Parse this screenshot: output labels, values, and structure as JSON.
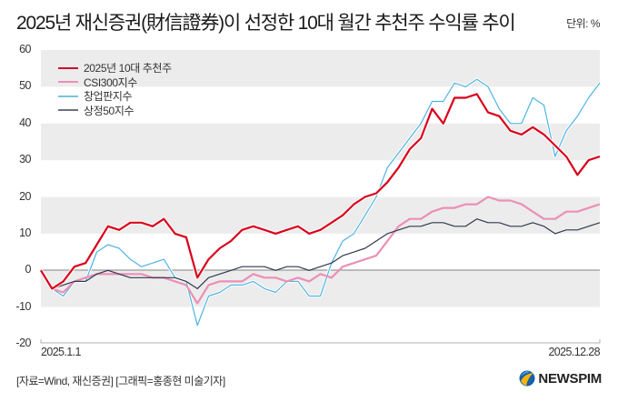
{
  "header": {
    "title": "2025년 재신증권(財信證券)이 선정한 10대 월간 추천주 수익률 추이",
    "unit": "단위: %"
  },
  "footer": {
    "source": "[자료=Wind, 재신증권] [그래픽=홍종현 미술기자]",
    "logo_text": "NEWSPIM",
    "logo_icon": "newspim-globe-icon"
  },
  "colors": {
    "red": "#d9001b",
    "pink": "#ec8fb6",
    "cyan": "#4fb3e0",
    "navy": "#2e3a4e",
    "legend_navy": "#6b7280",
    "band": "#ececec",
    "zero_line": "#9a9a9a"
  },
  "chart_data": {
    "type": "line",
    "title": "2025년 재신증권(財信證券)이 선정한 10대 월간 추천주 수익률 추이",
    "unit": "단위: %",
    "xlabel": "",
    "ylabel": "",
    "ylim": [
      -20,
      60
    ],
    "yticks": [
      60,
      50,
      40,
      30,
      20,
      10,
      0,
      -10,
      -20
    ],
    "x_tick_labels": [
      "2025.1.1",
      "2025.12.28"
    ],
    "x_range": [
      "2025.1.1",
      "2025.12.28"
    ],
    "grid": "alternating horizontal bands",
    "legend_position": "upper-left",
    "legend": [
      "2025년 10대 추천주",
      "CSI300지수",
      "창업판지수",
      "상정50지수"
    ],
    "x": [
      0,
      2,
      4,
      6,
      8,
      10,
      12,
      14,
      16,
      18,
      20,
      22,
      24,
      26,
      28,
      30,
      32,
      34,
      36,
      38,
      40,
      42,
      44,
      46,
      48,
      50,
      52,
      54,
      56,
      58,
      60,
      62,
      64,
      66,
      68,
      70,
      72,
      74,
      76,
      78,
      80,
      82,
      84,
      86,
      88,
      90,
      92,
      94,
      96,
      98,
      100
    ],
    "series": [
      {
        "name": "2025년 10대 추천주",
        "color": "#d9001b",
        "values": [
          0,
          -5,
          -3,
          1,
          2,
          7,
          12,
          11,
          13,
          13,
          12,
          14,
          10,
          9,
          -2,
          3,
          6,
          8,
          11,
          12,
          11,
          10,
          11,
          12,
          10,
          11,
          13,
          15,
          18,
          20,
          21,
          24,
          28,
          33,
          36,
          44,
          40,
          47,
          47,
          48,
          43,
          42,
          38,
          37,
          39,
          37,
          34,
          31,
          26,
          30,
          31
        ]
      },
      {
        "name": "CSI300지수",
        "color": "#ec8fb6",
        "values": [
          0,
          -5,
          -6,
          -3,
          -2,
          -1,
          -1,
          -1,
          -1,
          -1,
          -2,
          -2,
          -3,
          -4,
          -9,
          -4,
          -3,
          -3,
          -3,
          -1,
          -2,
          -2,
          -3,
          -2,
          -3,
          -1,
          -2,
          1,
          2,
          3,
          4,
          8,
          12,
          14,
          14,
          16,
          17,
          17,
          18,
          18,
          20,
          19,
          19,
          18,
          16,
          14,
          14,
          16,
          16,
          17,
          18
        ]
      },
      {
        "name": "창업판지수",
        "color": "#4fb3e0",
        "values": [
          0,
          -5,
          -7,
          -3,
          -3,
          5,
          7,
          6,
          3,
          1,
          2,
          3,
          -2,
          -3,
          -15,
          -7,
          -6,
          -4,
          -4,
          -3,
          -5,
          -6,
          -3,
          -3,
          -7,
          -7,
          2,
          8,
          10,
          15,
          20,
          28,
          32,
          36,
          40,
          46,
          46,
          51,
          50,
          52,
          50,
          44,
          40,
          40,
          47,
          45,
          31,
          38,
          42,
          47,
          51
        ]
      },
      {
        "name": "상정50지수",
        "color": "#2e3a4e",
        "values": [
          0,
          -5,
          -4,
          -3,
          -3,
          -1,
          0,
          -1,
          -2,
          -2,
          -2,
          -2,
          -2,
          -3,
          -5,
          -2,
          -1,
          0,
          1,
          1,
          1,
          0,
          1,
          1,
          0,
          1,
          2,
          4,
          5,
          6,
          8,
          10,
          11,
          12,
          12,
          13,
          13,
          12,
          12,
          14,
          13,
          13,
          12,
          12,
          13,
          12,
          10,
          11,
          11,
          12,
          13
        ]
      }
    ]
  }
}
